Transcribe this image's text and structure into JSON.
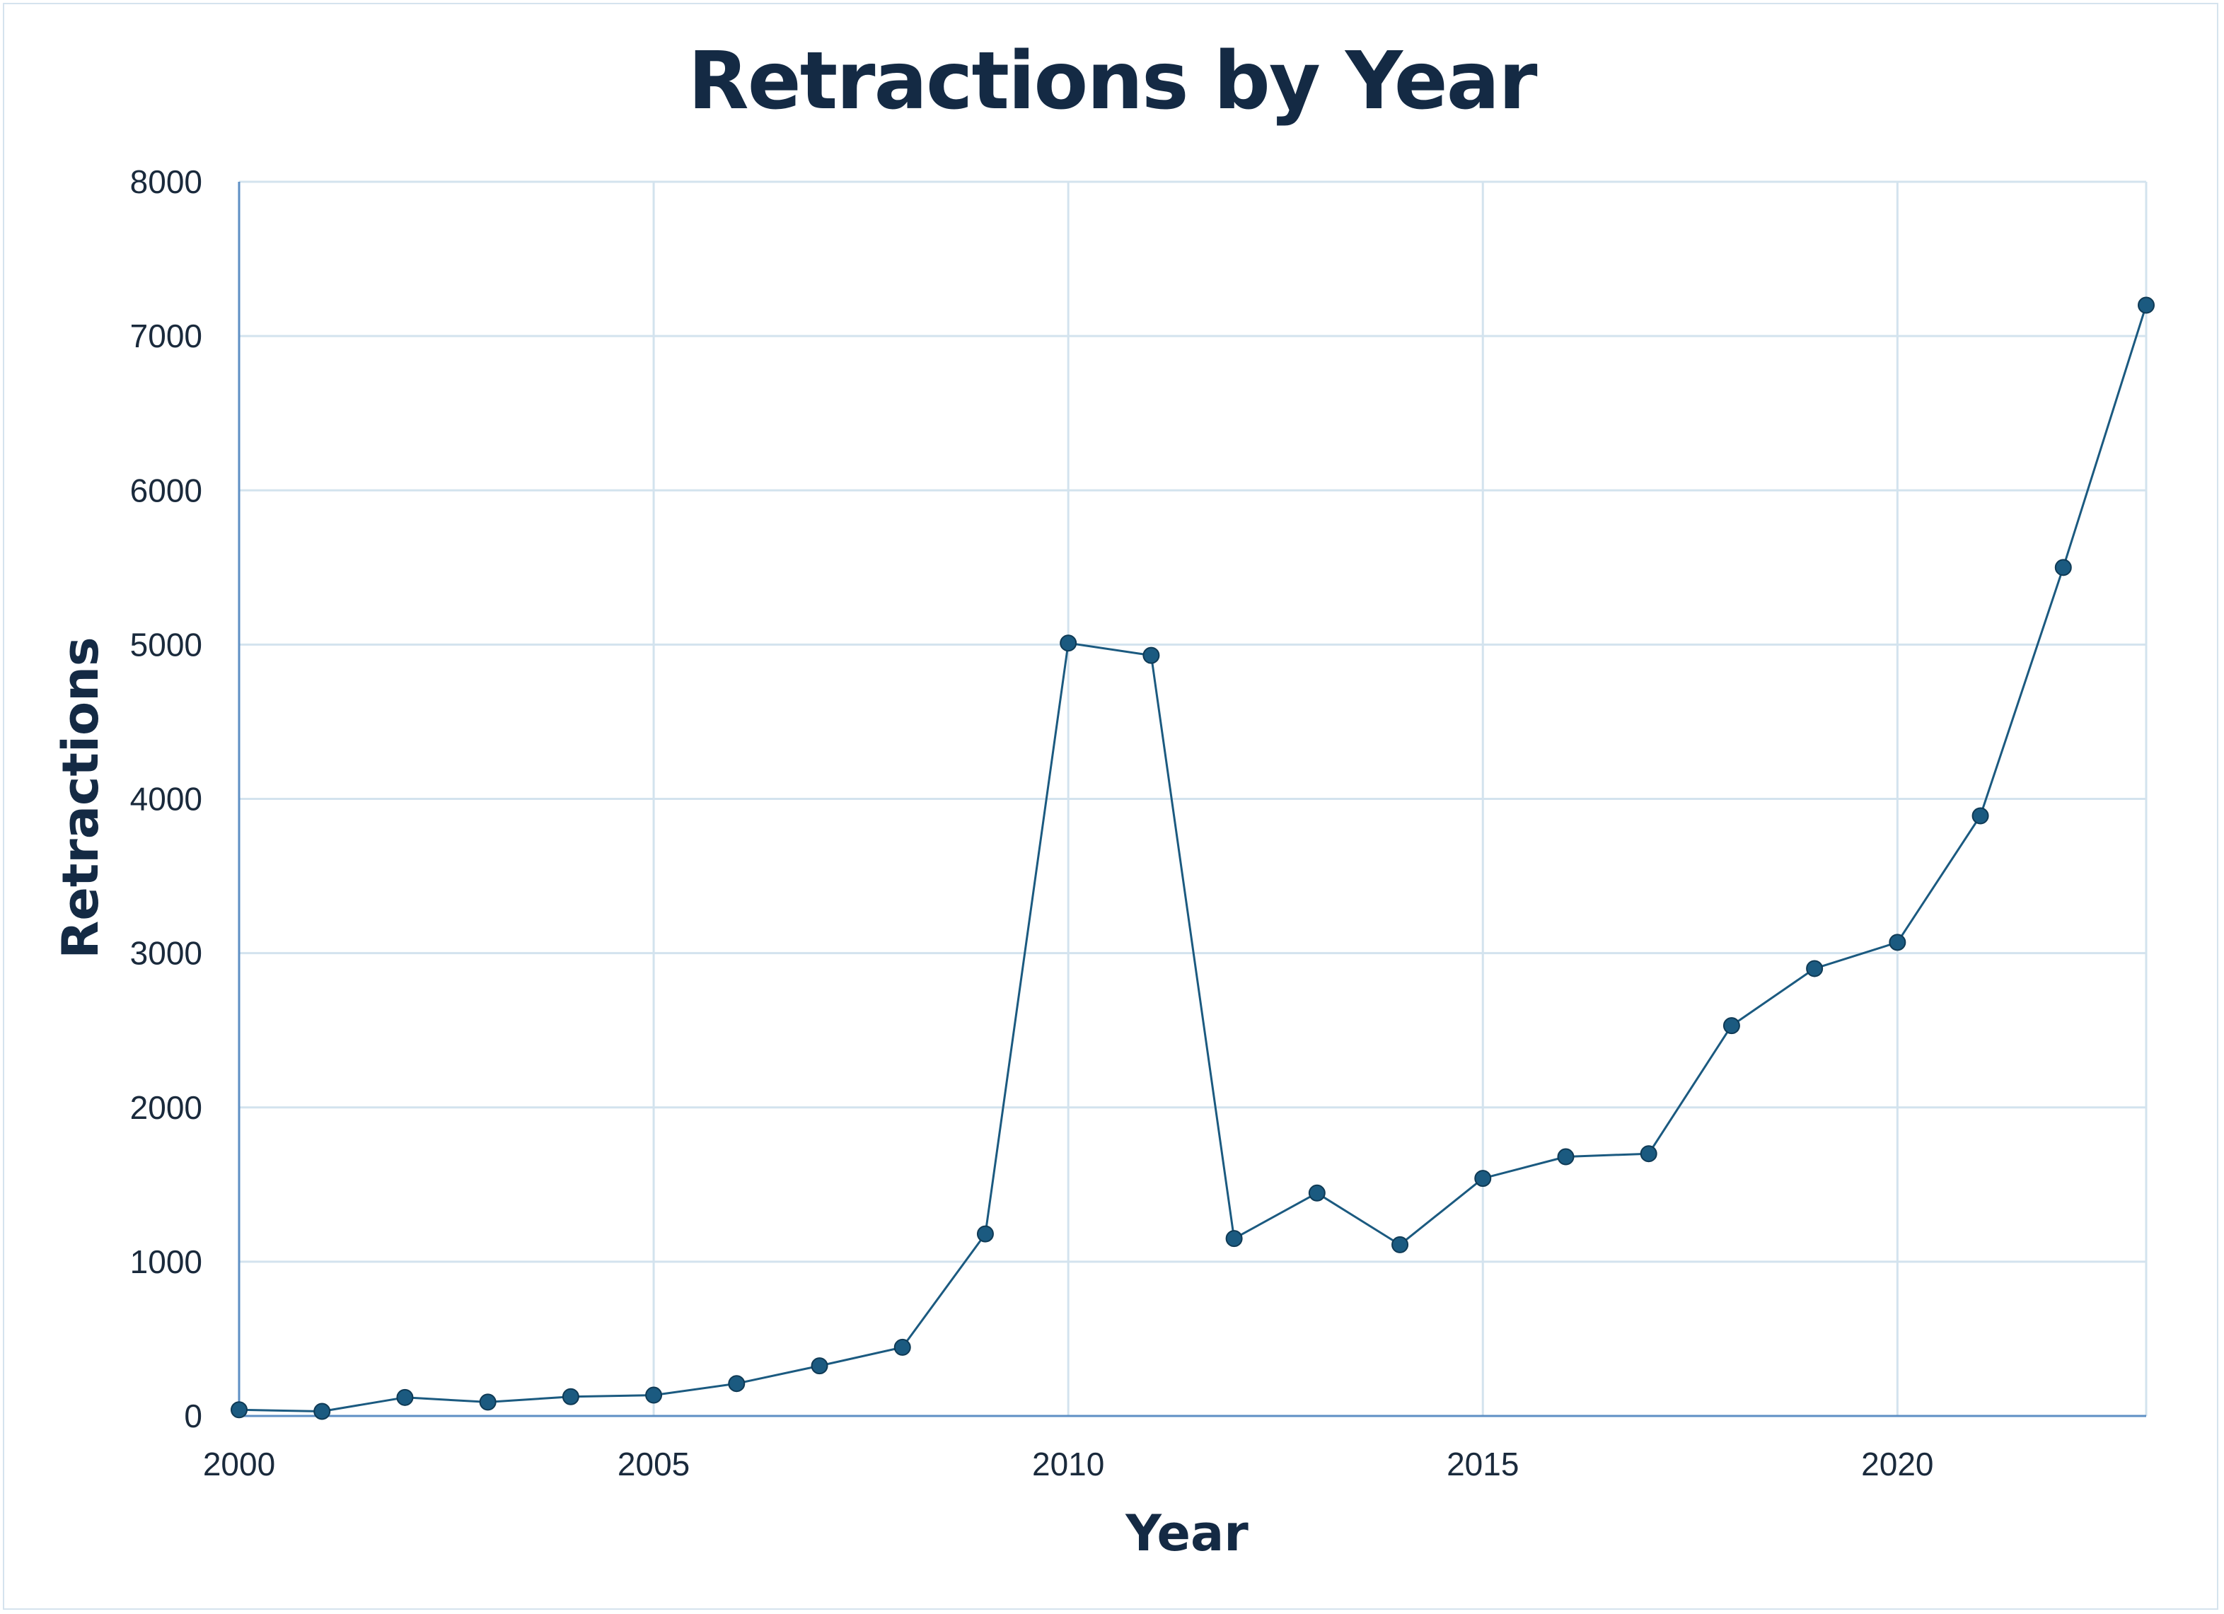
{
  "chart_data": {
    "type": "line",
    "title": "Retractions by Year",
    "xlabel": "Year",
    "ylabel": "Retractions",
    "xlim": [
      2000,
      2023
    ],
    "ylim": [
      0,
      8000
    ],
    "x_ticks": [
      2000,
      2005,
      2010,
      2015,
      2020
    ],
    "y_ticks": [
      0,
      1000,
      2000,
      3000,
      4000,
      5000,
      6000,
      7000,
      8000
    ],
    "grid": true,
    "legend": "none",
    "series": [
      {
        "color": "#1b5a80",
        "marker_color": "#1b5a80",
        "x": [
          2000,
          2001,
          2002,
          2003,
          2004,
          2005,
          2006,
          2007,
          2008,
          2009,
          2010,
          2011,
          2012,
          2013,
          2014,
          2015,
          2016,
          2017,
          2018,
          2019,
          2020,
          2021,
          2022,
          2023
        ],
        "y": [
          40,
          30,
          120,
          90,
          125,
          135,
          210,
          325,
          445,
          1180,
          5010,
          4930,
          1150,
          1445,
          1110,
          1540,
          1680,
          1700,
          2530,
          2900,
          3070,
          3890,
          5500,
          7200
        ]
      }
    ],
    "colors": {
      "grid": "#d3e3ee",
      "axis": "#5d8fc4",
      "text": "#1a2a3c",
      "title": "#142a44"
    }
  }
}
